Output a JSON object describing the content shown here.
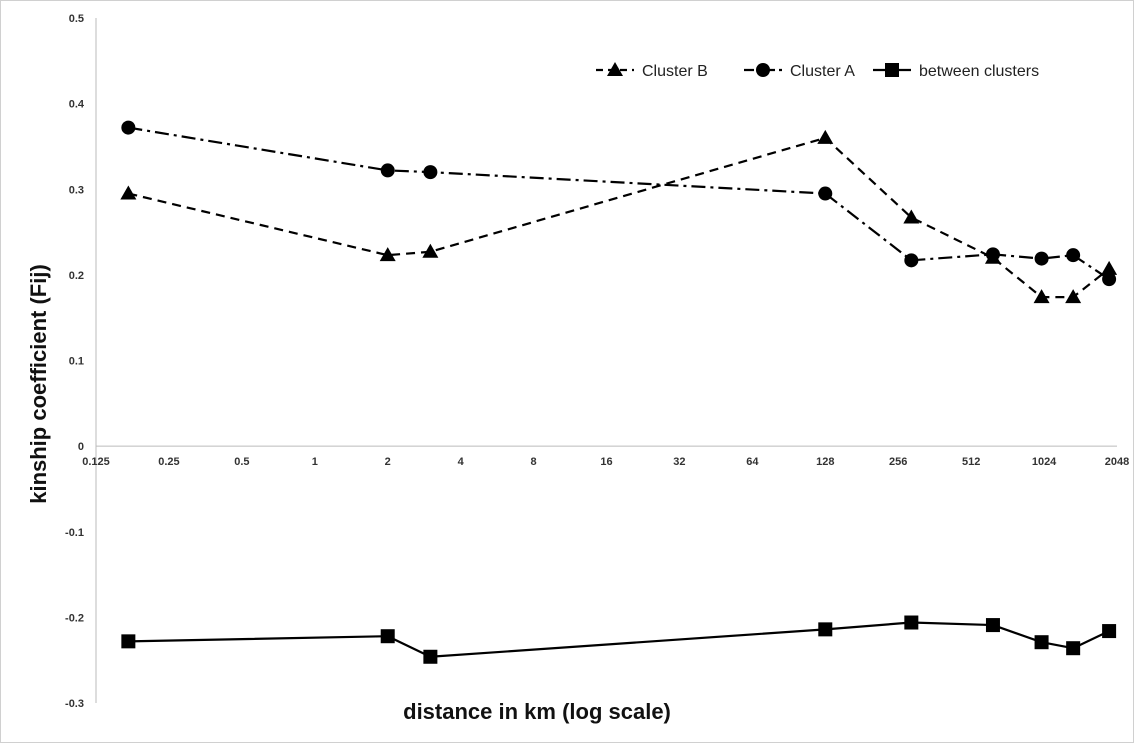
{
  "chart_data": {
    "type": "line",
    "title": "",
    "xlabel": "distance in km (log scale)",
    "ylabel": "kinship coefficient (Fij)",
    "x_scale": "log2",
    "xlim": [
      0.125,
      2048
    ],
    "ylim": [
      -0.3,
      0.5
    ],
    "x_tick_labels": [
      "0.125",
      "0.25",
      "0.5",
      "1",
      "2",
      "4",
      "8",
      "16",
      "32",
      "64",
      "128",
      "256",
      "512",
      "1024",
      "2048"
    ],
    "y_tick_labels": [
      "0.5",
      "0.4",
      "0.3",
      "0.2",
      "0.1",
      "0",
      "-0.1",
      "-0.2",
      "-0.3"
    ],
    "grid": false,
    "legend_position": "top-right",
    "series": [
      {
        "name": "Cluster B",
        "marker": "triangle",
        "line_style": "dashed",
        "color": "#000000",
        "x": [
          0.17,
          2,
          3,
          128,
          290,
          630,
          1000,
          1350,
          1900
        ],
        "y": [
          0.295,
          0.223,
          0.227,
          0.36,
          0.267,
          0.22,
          0.174,
          0.174,
          0.207
        ]
      },
      {
        "name": "Cluster A",
        "marker": "circle",
        "line_style": "dash-dot",
        "color": "#000000",
        "x": [
          0.17,
          2,
          3,
          128,
          290,
          630,
          1000,
          1350,
          1900
        ],
        "y": [
          0.372,
          0.322,
          0.32,
          0.295,
          0.217,
          0.224,
          0.219,
          0.223,
          0.195
        ]
      },
      {
        "name": "between clusters",
        "marker": "square",
        "line_style": "solid",
        "color": "#000000",
        "x": [
          0.17,
          2,
          3,
          128,
          290,
          630,
          1000,
          1350,
          1900
        ],
        "y": [
          -0.228,
          -0.222,
          -0.246,
          -0.214,
          -0.206,
          -0.209,
          -0.229,
          -0.236,
          -0.216
        ]
      }
    ]
  }
}
